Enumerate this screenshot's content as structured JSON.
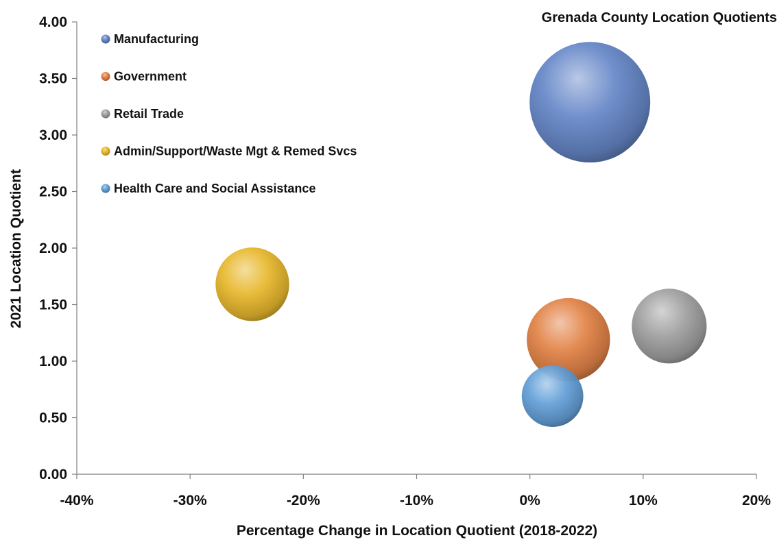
{
  "chart_data": {
    "type": "bubble",
    "title": "Grenada County Location Quotients",
    "xlabel": "Percentage Change in Location Quotient (2018-2022)",
    "ylabel": "2021 Location Quotient",
    "xlim": [
      -0.4,
      0.2
    ],
    "ylim": [
      0.0,
      4.0
    ],
    "x_ticks": [
      "-40%",
      "-30%",
      "-20%",
      "-10%",
      "0%",
      "10%",
      "20%"
    ],
    "y_ticks": [
      "0.00",
      "0.50",
      "1.00",
      "1.50",
      "2.00",
      "2.50",
      "3.00",
      "3.50",
      "4.00"
    ],
    "grid": false,
    "legend_position": "top-left",
    "series": [
      {
        "name": "Manufacturing",
        "x": 0.053,
        "y": 3.29,
        "relative_size": 1.0,
        "color": "#5b7fc4"
      },
      {
        "name": "Government",
        "x": 0.034,
        "y": 1.19,
        "relative_size": 0.69,
        "color": "#e07a3a"
      },
      {
        "name": "Retail Trade",
        "x": 0.123,
        "y": 1.31,
        "relative_size": 0.62,
        "color": "#9a9a9a"
      },
      {
        "name": "Admin/Support/Waste Mgt & Remed Svcs",
        "x": -0.245,
        "y": 1.68,
        "relative_size": 0.61,
        "color": "#e6b31f"
      },
      {
        "name": "Health Care and Social Assistance",
        "x": 0.02,
        "y": 0.69,
        "relative_size": 0.51,
        "color": "#5a9ad6"
      }
    ]
  }
}
